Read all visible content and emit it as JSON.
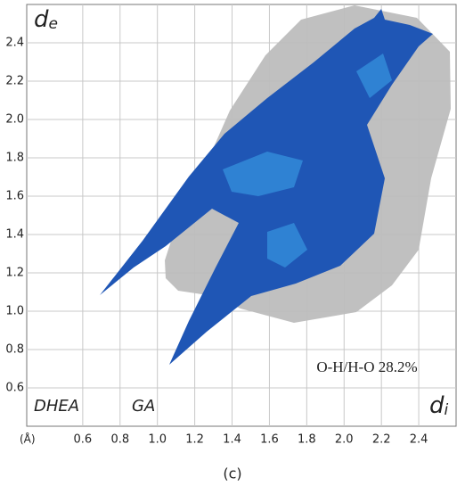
{
  "chart_data": {
    "type": "fingerprint",
    "x_label": "d",
    "x_label_subscript": "i",
    "y_label": "d",
    "y_label_subscript": "e",
    "x_unit": "(Å)",
    "annotations": [
      "DHEA",
      "GA",
      "O-H/H-O 28.2%"
    ],
    "caption": "(c)",
    "xlim": [
      0.3,
      2.6
    ],
    "ylim": [
      0.4,
      2.6
    ],
    "xticks": [
      0.6,
      0.8,
      {
        "value": 1,
        "label": "1.0"
      },
      1.2,
      1.4,
      1.6,
      1.8,
      {
        "value": 2,
        "label": "2.0"
      },
      2.2,
      2.4
    ],
    "yticks": [
      0.6,
      0.8,
      {
        "value": 1,
        "label": "1.0"
      },
      1.2,
      1.4,
      1.6,
      1.8,
      {
        "value": 2,
        "label": "2.0"
      },
      2.2,
      2.4
    ],
    "grid": true
  }
}
